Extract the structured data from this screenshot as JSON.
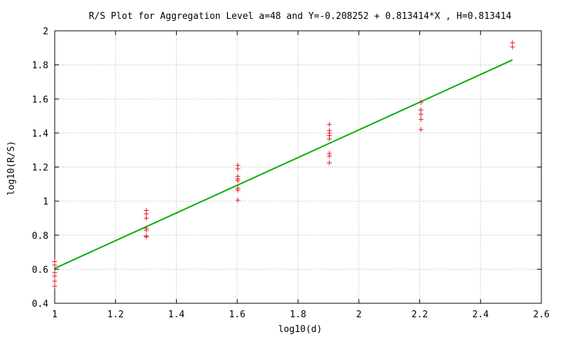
{
  "chart_data": {
    "type": "scatter",
    "title": "R/S Plot for Aggregation Level a=48 and Y=-0.208252 + 0.813414*X , H=0.813414",
    "xlabel": "log10(d)",
    "ylabel": "log10(R/S)",
    "xlim": [
      1.0,
      2.6
    ],
    "ylim": [
      0.4,
      2.0
    ],
    "xticks": [
      "1",
      "1.2",
      "1.4",
      "1.6",
      "1.8",
      "2",
      "2.2",
      "2.4",
      "2.6"
    ],
    "yticks": [
      "0.4",
      "0.6",
      "0.8",
      "1",
      "1.2",
      "1.4",
      "1.6",
      "1.8",
      "2"
    ],
    "grid": true,
    "series": [
      {
        "marker": "plus",
        "color": "#e41a1c",
        "points": [
          [
            1.0,
            0.645
          ],
          [
            1.0,
            0.625
          ],
          [
            1.0,
            0.58
          ],
          [
            1.0,
            0.56
          ],
          [
            1.0,
            0.53
          ],
          [
            1.0,
            0.5
          ],
          [
            1.301,
            0.945
          ],
          [
            1.301,
            0.925
          ],
          [
            1.301,
            0.9
          ],
          [
            1.301,
            0.84
          ],
          [
            1.301,
            0.83
          ],
          [
            1.301,
            0.795
          ],
          [
            1.301,
            0.79
          ],
          [
            1.602,
            1.21
          ],
          [
            1.602,
            1.19
          ],
          [
            1.602,
            1.145
          ],
          [
            1.602,
            1.13
          ],
          [
            1.602,
            1.12
          ],
          [
            1.602,
            1.075
          ],
          [
            1.602,
            1.065
          ],
          [
            1.602,
            1.005
          ],
          [
            1.903,
            1.45
          ],
          [
            1.903,
            1.415
          ],
          [
            1.903,
            1.4
          ],
          [
            1.903,
            1.385
          ],
          [
            1.903,
            1.365
          ],
          [
            1.903,
            1.28
          ],
          [
            1.903,
            1.265
          ],
          [
            1.903,
            1.225
          ],
          [
            2.204,
            1.58
          ],
          [
            2.204,
            1.535
          ],
          [
            2.204,
            1.51
          ],
          [
            2.204,
            1.48
          ],
          [
            2.204,
            1.42
          ],
          [
            2.505,
            1.93
          ],
          [
            2.505,
            1.905
          ]
        ]
      },
      {
        "type": "line",
        "color": "#00b000",
        "x": [
          1.0,
          2.505
        ],
        "y": [
          0.605,
          1.829
        ]
      }
    ]
  }
}
